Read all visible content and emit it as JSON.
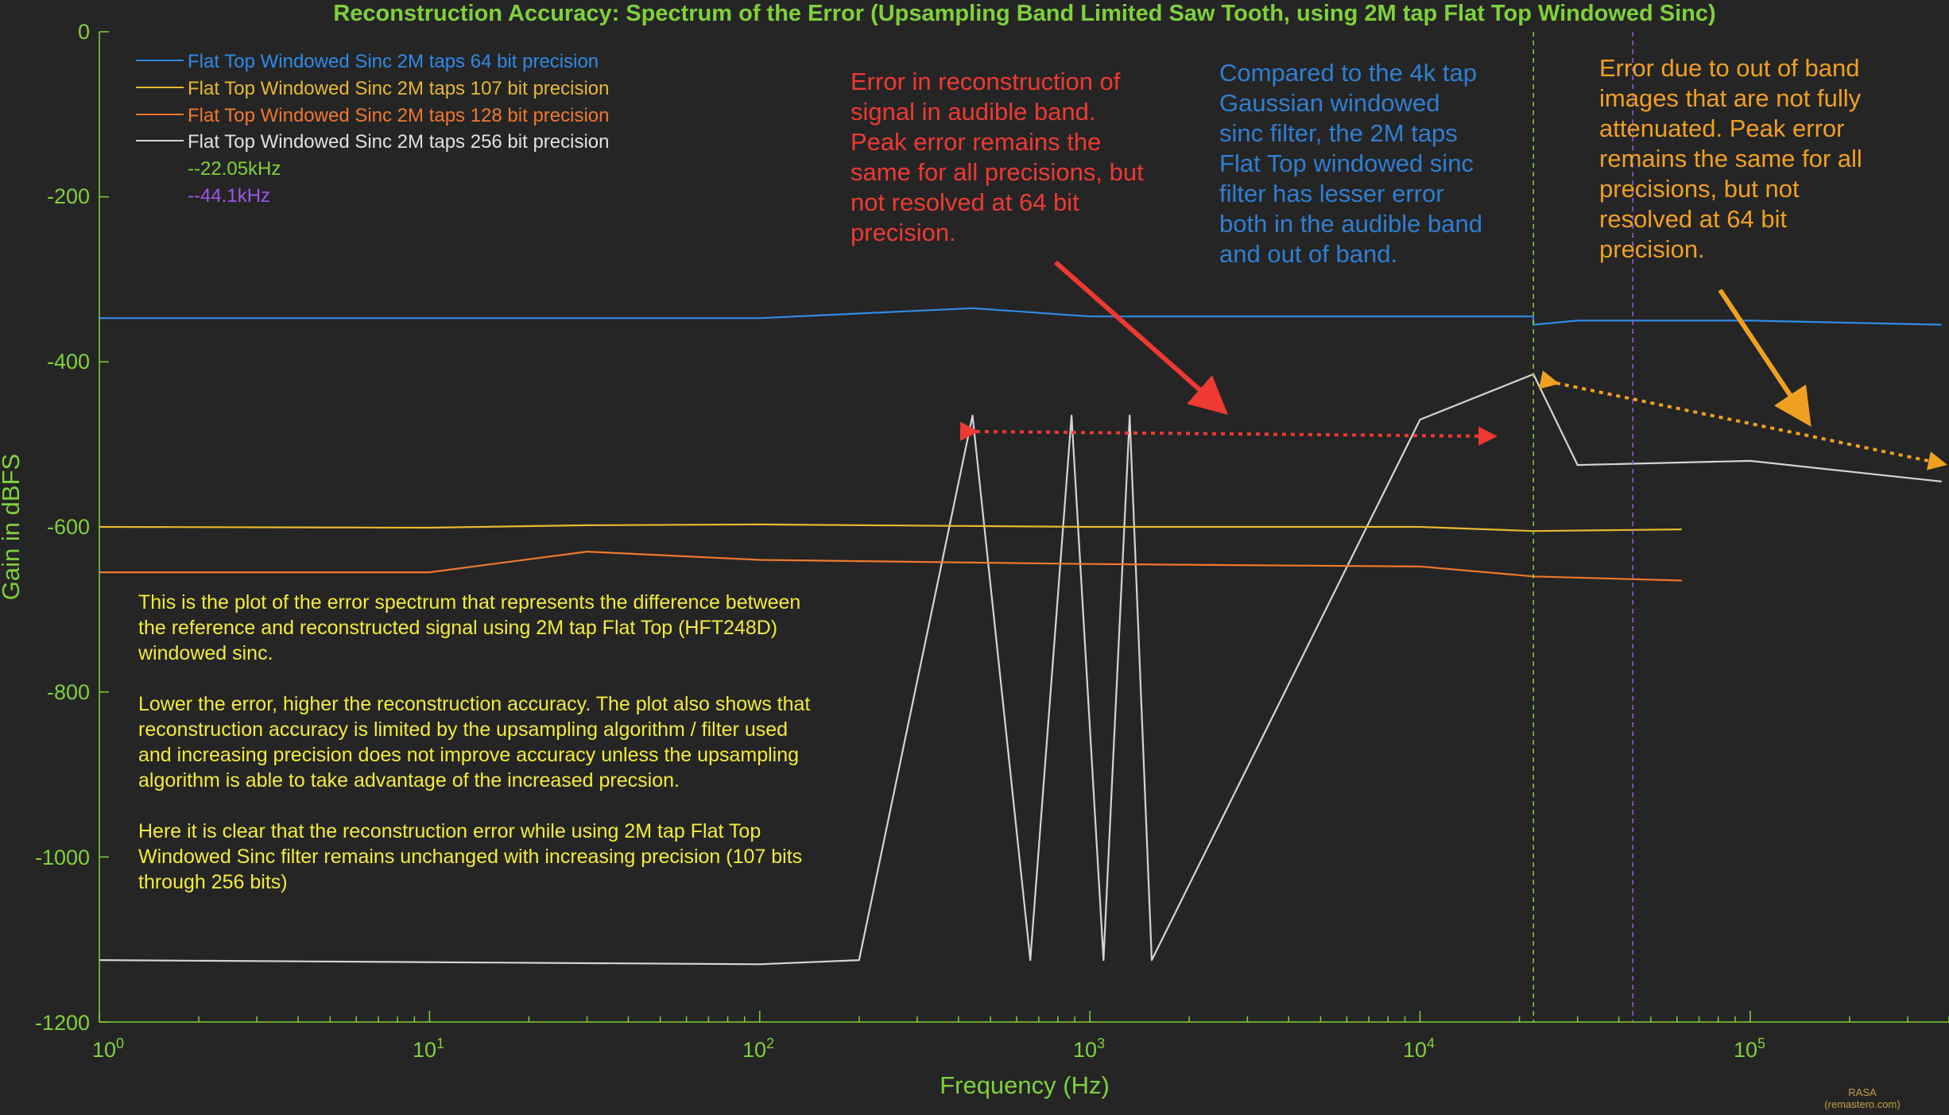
{
  "chart_data": {
    "type": "line",
    "title": "Reconstruction Accuracy: Spectrum of the Error (Upsampling Band Limited Saw Tooth, using 2M tap Flat Top  Windowed Sinc)",
    "xlabel": "Frequency (Hz)",
    "ylabel": "Gain in dBFS",
    "xscale": "log",
    "xlim": [
      1,
      400000
    ],
    "ylim": [
      -1200,
      0
    ],
    "y_ticks": [
      "0",
      "-200",
      "-400",
      "-600",
      "-800",
      "-1000",
      "-1200"
    ],
    "y_tick_values": [
      0,
      -200,
      -400,
      -600,
      -800,
      -1000,
      -1200
    ],
    "x_ticks": [
      {
        "base": "10",
        "exp": "0",
        "value": 1
      },
      {
        "base": "10",
        "exp": "1",
        "value": 10
      },
      {
        "base": "10",
        "exp": "2",
        "value": 100
      },
      {
        "base": "10",
        "exp": "3",
        "value": 1000
      },
      {
        "base": "10",
        "exp": "4",
        "value": 10000
      },
      {
        "base": "10",
        "exp": "5",
        "value": 100000
      }
    ],
    "grid": false,
    "legend_position": "top-left",
    "series": [
      {
        "name": "Flat Top Windowed Sinc 2M taps 64 bit precision",
        "color": "#2f8ae6",
        "x": [
          1,
          100,
          441,
          1000,
          10000,
          22000,
          22050,
          30000,
          100000,
          380000
        ],
        "y": [
          -347,
          -347,
          -335,
          -345,
          -345,
          -345,
          -355,
          -350,
          -350,
          -355
        ]
      },
      {
        "name": "Flat Top Windowed Sinc 2M taps 107 bit precision",
        "color": "#e8b830",
        "x": [
          1,
          10,
          30,
          100,
          1000,
          10000,
          22050,
          62000
        ],
        "y": [
          -600,
          -601,
          -598,
          -597,
          -600,
          -600,
          -605,
          -603
        ]
      },
      {
        "name": "Flat Top Windowed Sinc 2M taps 128 bit precision",
        "color": "#f0782e",
        "x": [
          1,
          10,
          30,
          100,
          1000,
          10000,
          22050,
          62000
        ],
        "y": [
          -655,
          -655,
          -630,
          -640,
          -645,
          -648,
          -660,
          -665
        ]
      },
      {
        "name": "Flat Top Windowed Sinc 2M taps 256 bit precision",
        "color": "#d4d4d4",
        "x": [
          1,
          100,
          200,
          441,
          660,
          880,
          1100,
          1320,
          1540,
          10000,
          22050,
          30000,
          100000,
          380000
        ],
        "y": [
          -1125,
          -1130,
          -1125,
          -465,
          -1125,
          -465,
          -1125,
          -465,
          -1125,
          -470,
          -415,
          -525,
          -520,
          -545
        ]
      },
      {
        "name": "--22.05kHz",
        "color": "#7fd13b",
        "x": [
          22050,
          22050
        ],
        "y": [
          0,
          -1200
        ]
      },
      {
        "name": "--44.1kHz",
        "color": "#a155e8",
        "x": [
          44100,
          44100
        ],
        "y": [
          0,
          -1200
        ]
      }
    ],
    "annotations": [
      {
        "name": "audible-band-note",
        "color": "#ee3a32",
        "lines": [
          "Error in reconstruction of",
          "signal in audible band.",
          "Peak error remains the",
          "same for all precisions, but",
          "not resolved at 64 bit",
          "precision."
        ]
      },
      {
        "name": "comparison-note",
        "color": "#2f7fd1",
        "lines": [
          "Compared to the 4k tap",
          "Gaussian windowed",
          "sinc filter, the 2M  taps",
          "Flat Top windowed sinc",
          "filter has lesser error",
          "both in the audible band",
          "and out of band."
        ]
      },
      {
        "name": "out-of-band-note",
        "color": "#f0a020",
        "lines": [
          "Error due to out of band",
          "images that are not fully",
          "attenuated. Peak error",
          "remains the same for all",
          "precisions, but not",
          "resolved at 64 bit",
          "precision."
        ]
      }
    ],
    "description_paragraphs": [
      [
        "This is the  plot of the error spectrum that represents the difference between",
        "the reference and reconstructed signal using 2M tap Flat Top (HFT248D)",
        "windowed sinc."
      ],
      [
        "Lower the error, higher the reconstruction accuracy. The plot also shows that",
        "reconstruction accuracy is limited by the upsampling algorithm / filter used",
        "and increasing precision does not improve accuracy unless the upsampling",
        "algorithm is able to take advantage of the increased precsion."
      ],
      [
        "Here it is clear that the reconstruction error while using 2M tap Flat Top",
        "Windowed Sinc filter remains unchanged with increasing precision (107 bits",
        "through 256  bits)"
      ]
    ],
    "credit": [
      "RASA",
      "(remastero.com)"
    ]
  }
}
